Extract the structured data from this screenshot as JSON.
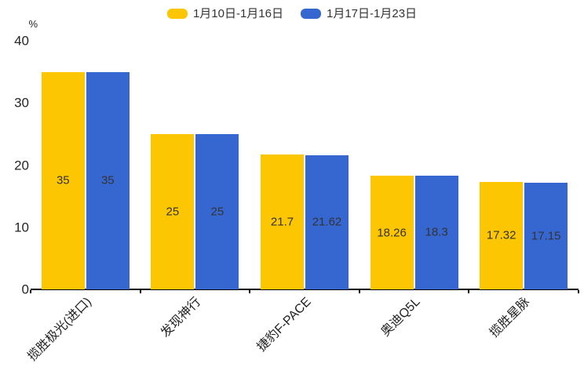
{
  "y_axis": {
    "unit": "%",
    "ticks": [
      0,
      10,
      20,
      30,
      40
    ],
    "max": 40
  },
  "legend": {
    "items": [
      {
        "label": "1月10日-1月16日",
        "color": "#FCC602"
      },
      {
        "label": "1月17日-1月23日",
        "color": "#3667D0"
      }
    ]
  },
  "colors": {
    "bar_yellow": "#FCC602",
    "bar_blue": "#3667D0",
    "axis": "#000000",
    "tick_text": "#262626",
    "bar_label_text": "#333333"
  },
  "chart_data": {
    "type": "bar",
    "categories": [
      "揽胜极光(进口)",
      "发现神行",
      "捷豹F-PACE",
      "奥迪Q5L",
      "揽胜星脉"
    ],
    "series": [
      {
        "name": "1月10日-1月16日",
        "color": "#FCC602",
        "values": [
          35,
          25,
          21.7,
          18.26,
          17.32
        ]
      },
      {
        "name": "1月17日-1月23日",
        "color": "#3667D0",
        "values": [
          35,
          25,
          21.62,
          18.3,
          17.15
        ]
      }
    ],
    "title": "",
    "xlabel": "",
    "ylabel": "%",
    "ylim": [
      0,
      40
    ],
    "grid": false,
    "legend_position": "top",
    "value_labels": true
  }
}
